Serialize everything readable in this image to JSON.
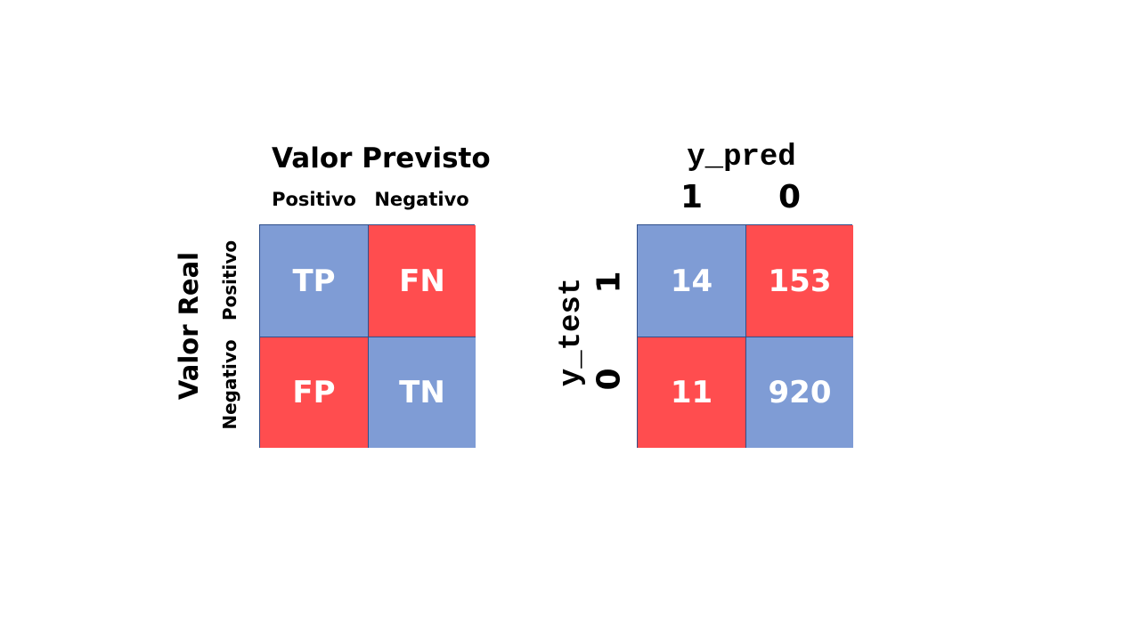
{
  "colors": {
    "blue": "#7f9cd5",
    "red": "#ff4d4f",
    "border": "#2f4f8a"
  },
  "left": {
    "title": "Valor Previsto",
    "col_labels": [
      "Positivo",
      "Negativo"
    ],
    "row_title": "Valor Real",
    "row_labels": [
      "Positivo",
      "Negativo"
    ],
    "cells": [
      [
        {
          "text": "TP",
          "color": "blue"
        },
        {
          "text": "FN",
          "color": "red"
        }
      ],
      [
        {
          "text": "FP",
          "color": "red"
        },
        {
          "text": "TN",
          "color": "blue"
        }
      ]
    ]
  },
  "right": {
    "title": "y_pred",
    "col_labels": [
      "1",
      "0"
    ],
    "row_title": "y_test",
    "row_labels": [
      "1",
      "0"
    ],
    "cells": [
      [
        {
          "text": "14",
          "color": "blue"
        },
        {
          "text": "153",
          "color": "red"
        }
      ],
      [
        {
          "text": "11",
          "color": "red"
        },
        {
          "text": "920",
          "color": "blue"
        }
      ]
    ]
  }
}
